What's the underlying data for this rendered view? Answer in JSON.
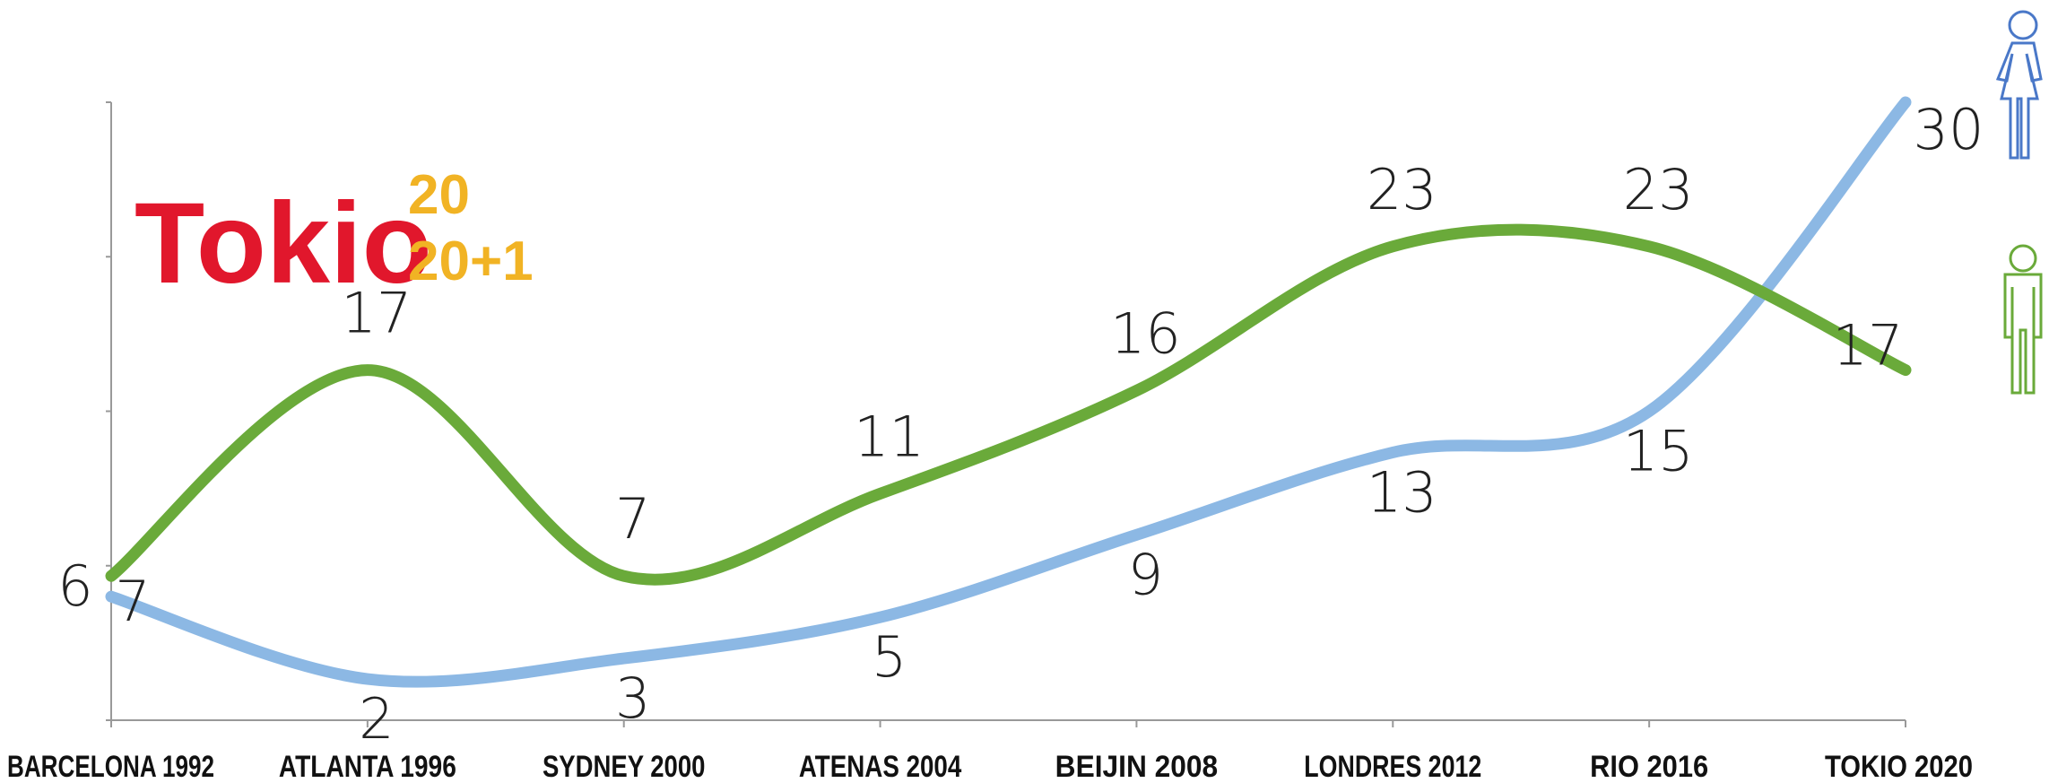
{
  "chart_data": {
    "type": "line",
    "categories": [
      "BARCELONA 1992",
      "ATLANTA 1996",
      "SYDNEY 2000",
      "ATENAS 2004",
      "BEIJIN 2008",
      "LONDRES 2012",
      "RIO 2016",
      "TOKIO 2020"
    ],
    "series": [
      {
        "color": "#8cb8e4",
        "values": [
          6,
          2,
          3,
          5,
          9,
          13,
          15,
          30
        ]
      },
      {
        "color": "#6aaa3a",
        "values": [
          7,
          17,
          7,
          11,
          16,
          23,
          23,
          17
        ]
      }
    ],
    "ylim": [
      0,
      30
    ],
    "yticks": [
      0,
      7.5,
      15,
      22.5,
      30
    ]
  },
  "logo": {
    "name": "Tokio",
    "year_top": "20",
    "year_bottom": "20+1"
  }
}
